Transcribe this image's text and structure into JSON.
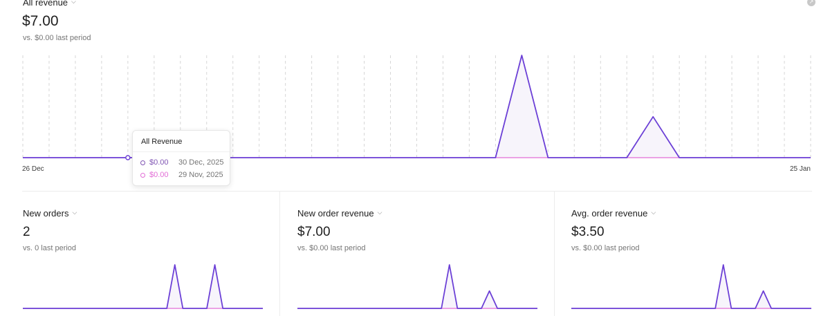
{
  "main": {
    "metric_label": "All revenue",
    "value": "$7.00",
    "comparison": "vs. $0.00 last period",
    "x_start_label": "26 Dec",
    "x_end_label": "25 Jan",
    "tooltip": {
      "title": "All Revenue",
      "rows": [
        {
          "value": "$0.00",
          "date": "30 Dec, 2025",
          "color": "#7f54b3"
        },
        {
          "value": "$0.00",
          "date": "29 Nov, 2025",
          "color": "#e26cd6"
        }
      ]
    }
  },
  "cards": [
    {
      "metric_label": "New orders",
      "value": "2",
      "comparison": "vs. 0 last period"
    },
    {
      "metric_label": "New order revenue",
      "value": "$7.00",
      "comparison": "vs. $0.00 last period"
    },
    {
      "metric_label": "Avg. order revenue",
      "value": "$3.50",
      "comparison": "vs. $0.00 last period"
    }
  ],
  "colors": {
    "current": "#6b3fd6",
    "previous": "#e26cd6",
    "fill": "#f7f4fb",
    "grid": "#d6d6d6"
  },
  "chart_data": [
    {
      "type": "area",
      "title": "All revenue",
      "x": [
        "26 Dec",
        "27 Dec",
        "28 Dec",
        "29 Dec",
        "30 Dec",
        "31 Dec",
        "1 Jan",
        "2 Jan",
        "3 Jan",
        "4 Jan",
        "5 Jan",
        "6 Jan",
        "7 Jan",
        "8 Jan",
        "9 Jan",
        "10 Jan",
        "11 Jan",
        "12 Jan",
        "13 Jan",
        "14 Jan",
        "15 Jan",
        "16 Jan",
        "17 Jan",
        "18 Jan",
        "19 Jan",
        "20 Jan",
        "21 Jan",
        "22 Jan",
        "23 Jan",
        "24 Jan",
        "25 Jan"
      ],
      "series": [
        {
          "name": "",
          "values": [
            0,
            0,
            0,
            0,
            0,
            0,
            0,
            0,
            0,
            0,
            0,
            0,
            0,
            0,
            0,
            0,
            0,
            0,
            0,
            5,
            0,
            0,
            0,
            0,
            2,
            0,
            0,
            0,
            0,
            0,
            0
          ]
        },
        {
          "name": "",
          "values": [
            0,
            0,
            0,
            0,
            0,
            0,
            0,
            0,
            0,
            0,
            0,
            0,
            0,
            0,
            0,
            0,
            0,
            0,
            0,
            0,
            0,
            0,
            0,
            0,
            0,
            0,
            0,
            0,
            0,
            0,
            0
          ]
        }
      ],
      "ylim": [
        0,
        5
      ]
    },
    {
      "type": "area",
      "title": "New orders",
      "series": [
        {
          "name": "",
          "values": [
            0,
            0,
            0,
            0,
            0,
            0,
            0,
            0,
            0,
            0,
            0,
            0,
            0,
            0,
            0,
            0,
            0,
            0,
            0,
            1,
            0,
            0,
            0,
            0,
            1,
            0,
            0,
            0,
            0,
            0,
            0
          ]
        },
        {
          "name": "",
          "values": [
            0,
            0,
            0,
            0,
            0,
            0,
            0,
            0,
            0,
            0,
            0,
            0,
            0,
            0,
            0,
            0,
            0,
            0,
            0,
            0,
            0,
            0,
            0,
            0,
            0,
            0,
            0,
            0,
            0,
            0,
            0
          ]
        }
      ],
      "ylim": [
        0,
        1
      ]
    },
    {
      "type": "area",
      "title": "New order revenue",
      "series": [
        {
          "name": "",
          "values": [
            0,
            0,
            0,
            0,
            0,
            0,
            0,
            0,
            0,
            0,
            0,
            0,
            0,
            0,
            0,
            0,
            0,
            0,
            0,
            5,
            0,
            0,
            0,
            0,
            2,
            0,
            0,
            0,
            0,
            0,
            0
          ]
        },
        {
          "name": "",
          "values": [
            0,
            0,
            0,
            0,
            0,
            0,
            0,
            0,
            0,
            0,
            0,
            0,
            0,
            0,
            0,
            0,
            0,
            0,
            0,
            0,
            0,
            0,
            0,
            0,
            0,
            0,
            0,
            0,
            0,
            0,
            0
          ]
        }
      ],
      "ylim": [
        0,
        5
      ]
    },
    {
      "type": "area",
      "title": "Avg. order revenue",
      "series": [
        {
          "name": "",
          "values": [
            0,
            0,
            0,
            0,
            0,
            0,
            0,
            0,
            0,
            0,
            0,
            0,
            0,
            0,
            0,
            0,
            0,
            0,
            0,
            5,
            0,
            0,
            0,
            0,
            2,
            0,
            0,
            0,
            0,
            0,
            0
          ]
        },
        {
          "name": "",
          "values": [
            0,
            0,
            0,
            0,
            0,
            0,
            0,
            0,
            0,
            0,
            0,
            0,
            0,
            0,
            0,
            0,
            0,
            0,
            0,
            0,
            0,
            0,
            0,
            0,
            0,
            0,
            0,
            0,
            0,
            0,
            0
          ]
        }
      ],
      "ylim": [
        0,
        5
      ]
    }
  ]
}
